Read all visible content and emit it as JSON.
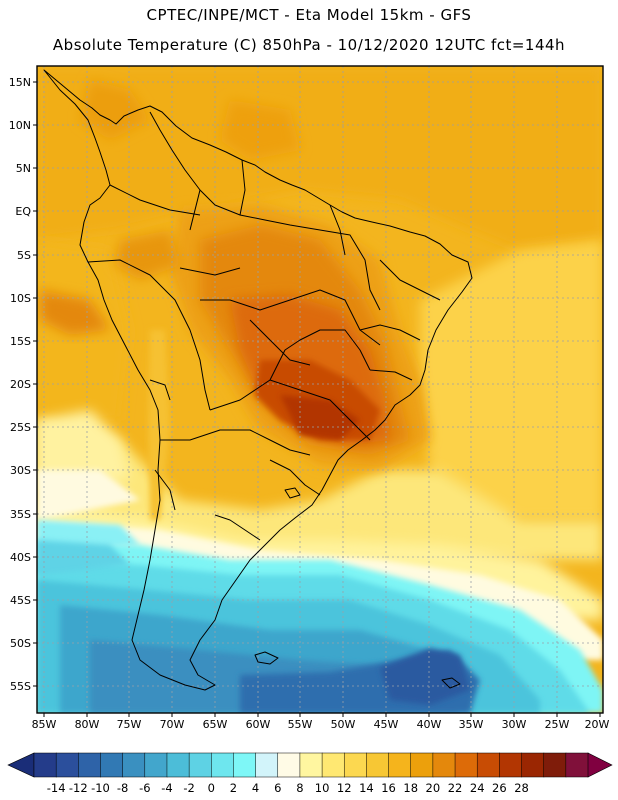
{
  "header": {
    "line1": "CPTEC/INPE/MCT -  Eta Model 15km - GFS",
    "line2": "Absolute Temperature (C) 850hPa - 10/12/2020 12UTC fct=144h"
  },
  "map": {
    "lat_labels": [
      "15N",
      "10N",
      "5N",
      "EQ",
      "5S",
      "10S",
      "15S",
      "20S",
      "25S",
      "30S",
      "35S",
      "40S",
      "45S",
      "50S",
      "55S"
    ],
    "lon_labels": [
      "85W",
      "80W",
      "75W",
      "70W",
      "65W",
      "60W",
      "55W",
      "50W",
      "45W",
      "40W",
      "35W",
      "30W",
      "25W",
      "20W"
    ],
    "lat_range": [
      15,
      -57
    ],
    "lon_range": [
      -86,
      -19
    ]
  },
  "colorbar": {
    "labels": [
      "-14",
      "-12",
      "-10",
      "-8",
      "-6",
      "-4",
      "-2",
      "0",
      "2",
      "4",
      "6",
      "8",
      "10",
      "12",
      "14",
      "16",
      "18",
      "20",
      "22",
      "24",
      "26",
      "28"
    ],
    "colors": [
      "#243c8a",
      "#2b4f9c",
      "#2e63a8",
      "#3179b4",
      "#3a90c0",
      "#42a6cc",
      "#4cbdd8",
      "#5ed2e4",
      "#6ee6ee",
      "#7ef7f7",
      "#d2f4fa",
      "#fffbe6",
      "#fff6a0",
      "#ffe872",
      "#fcd850",
      "#f7c734",
      "#f5b41c",
      "#eca00c",
      "#e4880c",
      "#dd6b08",
      "#c84c04",
      "#b23602",
      "#9a2602",
      "#7f1c0a",
      "#80103a"
    ],
    "low_color": "#1a2d78",
    "high_color": "#800040"
  }
}
